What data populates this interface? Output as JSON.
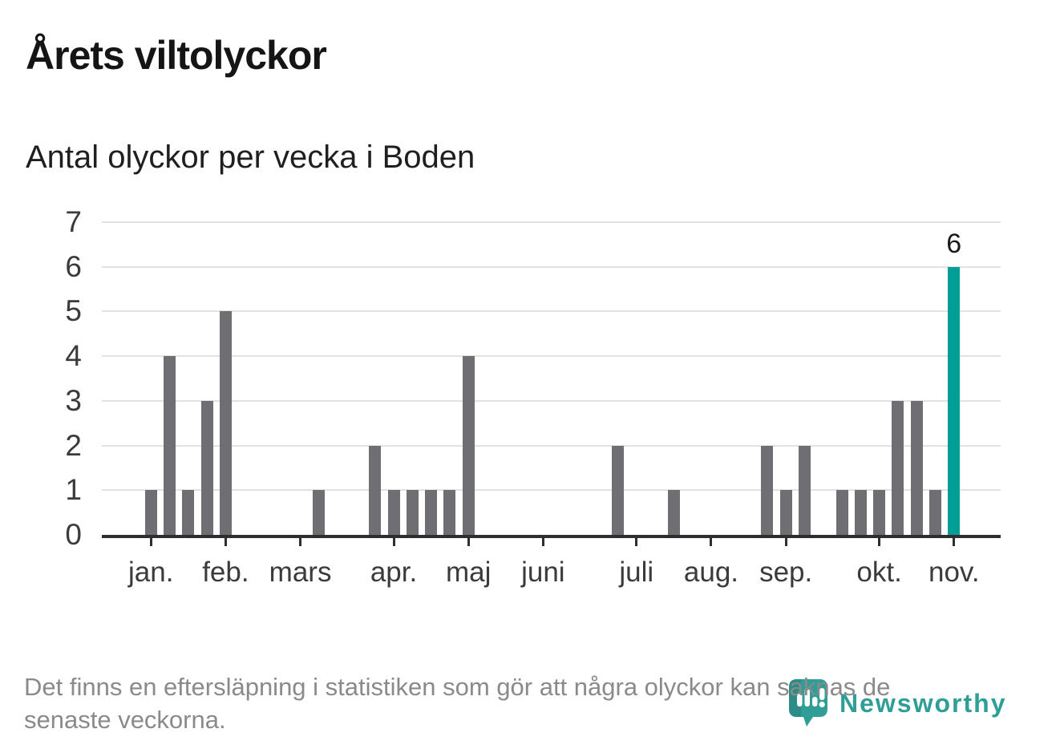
{
  "header": {
    "title": "Årets viltolyckor",
    "subtitle": "Antal olyckor per vecka i Boden"
  },
  "footer": {
    "note_line1": "Det finns en eftersläpning i statistiken som gör att några olyckor kan saknas de",
    "note_line2": "senaste veckorna.",
    "brand_name": "Newsworthy",
    "brand_icon": "newsworthy-pin-barchart-icon"
  },
  "colors": {
    "bar": "#6e6e73",
    "highlight": "#009e96",
    "brand": "#2e9e96",
    "grid": "#e1e1e1",
    "axis": "#2e2e2e",
    "labels": "#3b3b3b",
    "note": "#8a8a8a"
  },
  "chart_data": {
    "type": "bar",
    "title": "Årets viltolyckor",
    "subtitle": "Antal olyckor per vecka i Boden",
    "x_unit": "vecka",
    "ylabel": "",
    "xlabel": "",
    "ylim": [
      0,
      7
    ],
    "yticks": [
      0,
      1,
      2,
      3,
      4,
      5,
      6,
      7
    ],
    "grid": true,
    "legend": "none",
    "weeks": 48,
    "values": [
      0,
      0,
      1,
      4,
      1,
      3,
      5,
      0,
      0,
      0,
      0,
      1,
      0,
      0,
      2,
      1,
      1,
      1,
      1,
      4,
      0,
      0,
      0,
      0,
      0,
      0,
      0,
      2,
      0,
      0,
      1,
      0,
      0,
      0,
      0,
      2,
      1,
      2,
      0,
      1,
      1,
      1,
      3,
      3,
      1,
      6,
      0,
      0
    ],
    "month_ticks": [
      {
        "label": "jan.",
        "slot": 3
      },
      {
        "label": "feb.",
        "slot": 7
      },
      {
        "label": "mars",
        "slot": 11
      },
      {
        "label": "apr.",
        "slot": 16
      },
      {
        "label": "maj",
        "slot": 20
      },
      {
        "label": "juni",
        "slot": 24
      },
      {
        "label": "juli",
        "slot": 29
      },
      {
        "label": "aug.",
        "slot": 33
      },
      {
        "label": "sep.",
        "slot": 37
      },
      {
        "label": "okt.",
        "slot": 42
      },
      {
        "label": "nov.",
        "slot": 46
      }
    ],
    "highlight": {
      "slot": 46,
      "value": 6,
      "data_label": "6"
    }
  }
}
